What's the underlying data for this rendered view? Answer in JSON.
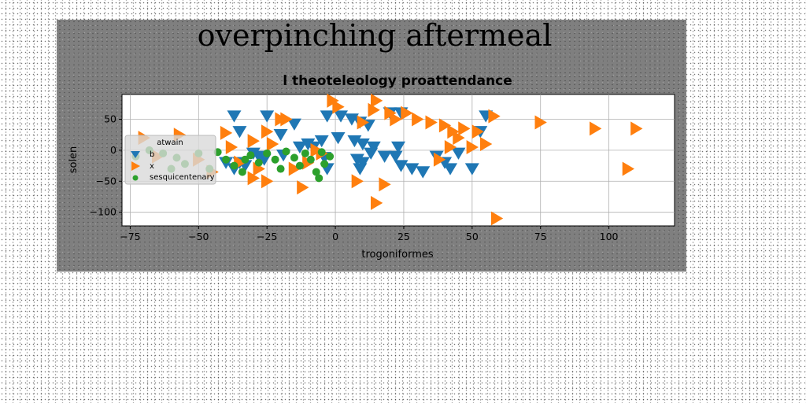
{
  "figure": {
    "suptitle": "overpinching aftermeal"
  },
  "chart_data": {
    "type": "scatter",
    "title": "l theoteleology proattendance",
    "xlabel": "trogoniformes",
    "ylabel": "solen",
    "xlim": [
      -78,
      124
    ],
    "ylim": [
      -122,
      90
    ],
    "xticks": [
      -75,
      -50,
      -25,
      0,
      25,
      50,
      75,
      100
    ],
    "yticks": [
      50,
      0,
      -50,
      -100
    ],
    "grid": true,
    "legend": {
      "title": "atwain",
      "placement": "center-left"
    },
    "series": [
      {
        "name": "b",
        "marker": "triangle-down",
        "color": "#1f77b4",
        "points": [
          [
            -37,
            55
          ],
          [
            -25,
            55
          ],
          [
            -15,
            42
          ],
          [
            -3,
            55
          ],
          [
            2,
            55
          ],
          [
            6,
            50
          ],
          [
            9,
            45
          ],
          [
            12,
            40
          ],
          [
            20,
            60
          ],
          [
            24,
            60
          ],
          [
            55,
            55
          ],
          [
            -35,
            30
          ],
          [
            -20,
            25
          ],
          [
            -10,
            10
          ],
          [
            -5,
            15
          ],
          [
            1,
            20
          ],
          [
            7,
            15
          ],
          [
            10,
            10
          ],
          [
            14,
            5
          ],
          [
            -8,
            5
          ],
          [
            -13,
            5
          ],
          [
            -30,
            -5
          ],
          [
            -28,
            -10
          ],
          [
            -26,
            -15
          ],
          [
            -35,
            -20
          ],
          [
            -40,
            -20
          ],
          [
            -37,
            -30
          ],
          [
            -33,
            -25
          ],
          [
            -19,
            -8
          ],
          [
            -4,
            -12
          ],
          [
            8,
            -15
          ],
          [
            10,
            -20
          ],
          [
            9,
            -30
          ],
          [
            13,
            -5
          ],
          [
            18,
            -10
          ],
          [
            22,
            -10
          ],
          [
            24,
            -25
          ],
          [
            28,
            -30
          ],
          [
            32,
            -35
          ],
          [
            37,
            -10
          ],
          [
            40,
            -20
          ],
          [
            42,
            -30
          ],
          [
            45,
            -5
          ],
          [
            50,
            -30
          ],
          [
            53,
            30
          ],
          [
            23,
            5
          ],
          [
            -3,
            -30
          ]
        ]
      },
      {
        "name": "x",
        "marker": "triangle-right",
        "color": "#ff7f0e",
        "points": [
          [
            -70,
            20
          ],
          [
            -57,
            25
          ],
          [
            -65,
            -10
          ],
          [
            -40,
            28
          ],
          [
            -38,
            5
          ],
          [
            -35,
            -20
          ],
          [
            -30,
            -45
          ],
          [
            -28,
            -30
          ],
          [
            -25,
            -50
          ],
          [
            -23,
            10
          ],
          [
            -20,
            50
          ],
          [
            -15,
            -30
          ],
          [
            -12,
            -60
          ],
          [
            -10,
            -20
          ],
          [
            -7,
            0
          ],
          [
            -5,
            -5
          ],
          [
            -1,
            80
          ],
          [
            1,
            70
          ],
          [
            10,
            45
          ],
          [
            14,
            65
          ],
          [
            15,
            80
          ],
          [
            20,
            60
          ],
          [
            22,
            50
          ],
          [
            26,
            60
          ],
          [
            30,
            50
          ],
          [
            35,
            45
          ],
          [
            38,
            -15
          ],
          [
            40,
            40
          ],
          [
            42,
            5
          ],
          [
            43,
            30
          ],
          [
            45,
            20
          ],
          [
            47,
            35
          ],
          [
            50,
            5
          ],
          [
            52,
            30
          ],
          [
            55,
            10
          ],
          [
            58,
            55
          ],
          [
            59,
            -110
          ],
          [
            75,
            45
          ],
          [
            95,
            35
          ],
          [
            110,
            35
          ],
          [
            107,
            -30
          ],
          [
            18,
            -55
          ],
          [
            15,
            -85
          ],
          [
            8,
            -50
          ],
          [
            -30,
            15
          ],
          [
            -25,
            30
          ],
          [
            -50,
            -15
          ],
          [
            -45,
            -35
          ],
          [
            -18,
            50
          ]
        ]
      },
      {
        "name": "sesquicentenary",
        "marker": "circle",
        "color": "#2ca02c",
        "points": [
          [
            -73,
            -10
          ],
          [
            -68,
            0
          ],
          [
            -63,
            -5
          ],
          [
            -60,
            -30
          ],
          [
            -58,
            -12
          ],
          [
            -55,
            -22
          ],
          [
            -50,
            -5
          ],
          [
            -46,
            -30
          ],
          [
            -43,
            -3
          ],
          [
            -40,
            -15
          ],
          [
            -37,
            -25
          ],
          [
            -34,
            -35
          ],
          [
            -31,
            -8
          ],
          [
            -28,
            -20
          ],
          [
            -25,
            -5
          ],
          [
            -22,
            -15
          ],
          [
            -20,
            -30
          ],
          [
            -18,
            -2
          ],
          [
            -15,
            -12
          ],
          [
            -13,
            -25
          ],
          [
            -11,
            -5
          ],
          [
            -9,
            -15
          ],
          [
            -7,
            -35
          ],
          [
            -5,
            -3
          ],
          [
            -4,
            -22
          ],
          [
            -2,
            -10
          ],
          [
            -6,
            -45
          ],
          [
            -33,
            -15
          ]
        ]
      }
    ]
  }
}
